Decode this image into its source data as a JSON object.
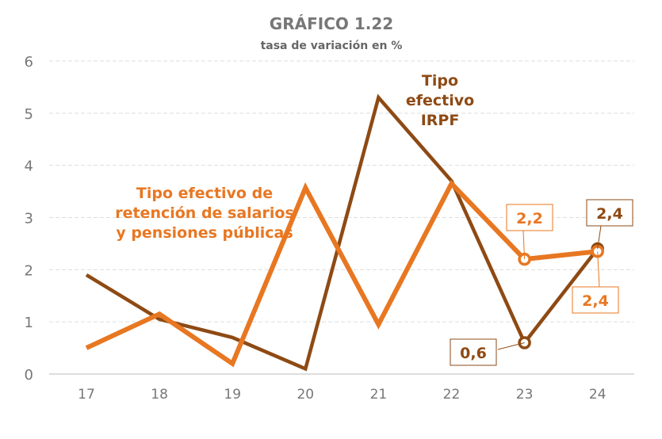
{
  "chart_data": {
    "type": "line",
    "title": "GRÁFICO 1.22",
    "subtitle": "tasa de variación en %",
    "xlabel": "",
    "ylabel": "",
    "categories": [
      "17",
      "18",
      "19",
      "20",
      "21",
      "22",
      "23",
      "24"
    ],
    "ylim": [
      0,
      6
    ],
    "yticks": [
      "0",
      "1",
      "2",
      "3",
      "4",
      "5",
      "6"
    ],
    "grid": true,
    "series": [
      {
        "name": "Tipo efectivo IRPF",
        "label_lines": [
          "Tipo",
          "efectivo",
          "IRPF"
        ],
        "color": "#8E4A14",
        "values": [
          1.9,
          1.05,
          0.7,
          0.1,
          5.3,
          3.7,
          0.6,
          2.4
        ],
        "data_labels": {
          "6": "0,6",
          "7": "2,4"
        }
      },
      {
        "name": "Tipo efectivo de retención de salarios y pensiones públicas",
        "label_lines": [
          "Tipo efectivo de",
          "retención de salarios",
          "y pensiones públicas"
        ],
        "color": "#E87722",
        "values": [
          0.5,
          1.15,
          0.2,
          3.57,
          0.95,
          3.65,
          2.2,
          2.35
        ],
        "data_labels": {
          "6": "2,2",
          "7": "2,4"
        }
      }
    ]
  }
}
